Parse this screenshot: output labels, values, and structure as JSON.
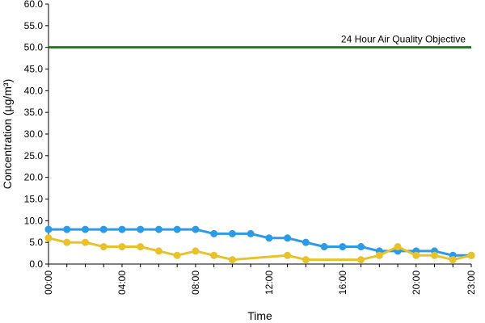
{
  "chart_data": {
    "type": "line",
    "title": "",
    "xlabel": "Time",
    "ylabel": "Concentration (µg/m³)",
    "ylim": [
      0,
      60
    ],
    "yticks": [
      "0.0",
      "5.0",
      "10.0",
      "15.0",
      "20.0",
      "25.0",
      "30.0",
      "35.0",
      "40.0",
      "45.0",
      "50.0",
      "55.0",
      "60.0"
    ],
    "x": [
      "00:00",
      "01:00",
      "02:00",
      "03:00",
      "04:00",
      "05:00",
      "06:00",
      "07:00",
      "08:00",
      "09:00",
      "10:00",
      "11:00",
      "12:00",
      "13:00",
      "14:00",
      "15:00",
      "16:00",
      "17:00",
      "18:00",
      "19:00",
      "20:00",
      "21:00",
      "22:00",
      "23:00"
    ],
    "xticks": [
      "00:00",
      "04:00",
      "08:00",
      "12:00",
      "16:00",
      "20:00",
      "23:00"
    ],
    "grid": false,
    "legend": "none",
    "objective": {
      "label": "24 Hour Air Quality Objective",
      "value": 50,
      "color": "#1f7a1f"
    },
    "series": [
      {
        "color": "#2b9be8",
        "values": [
          8,
          8,
          8,
          8,
          8,
          8,
          8,
          8,
          8,
          7,
          7,
          7,
          6,
          6,
          5,
          4,
          4,
          4,
          3,
          3,
          3,
          3,
          2,
          2
        ]
      },
      {
        "color": "#e8c22b",
        "values": [
          6,
          5,
          5,
          4,
          4,
          4,
          3,
          2,
          3,
          2,
          1,
          null,
          null,
          2,
          1,
          null,
          null,
          1,
          2,
          4,
          2,
          2,
          1,
          2
        ]
      }
    ]
  }
}
